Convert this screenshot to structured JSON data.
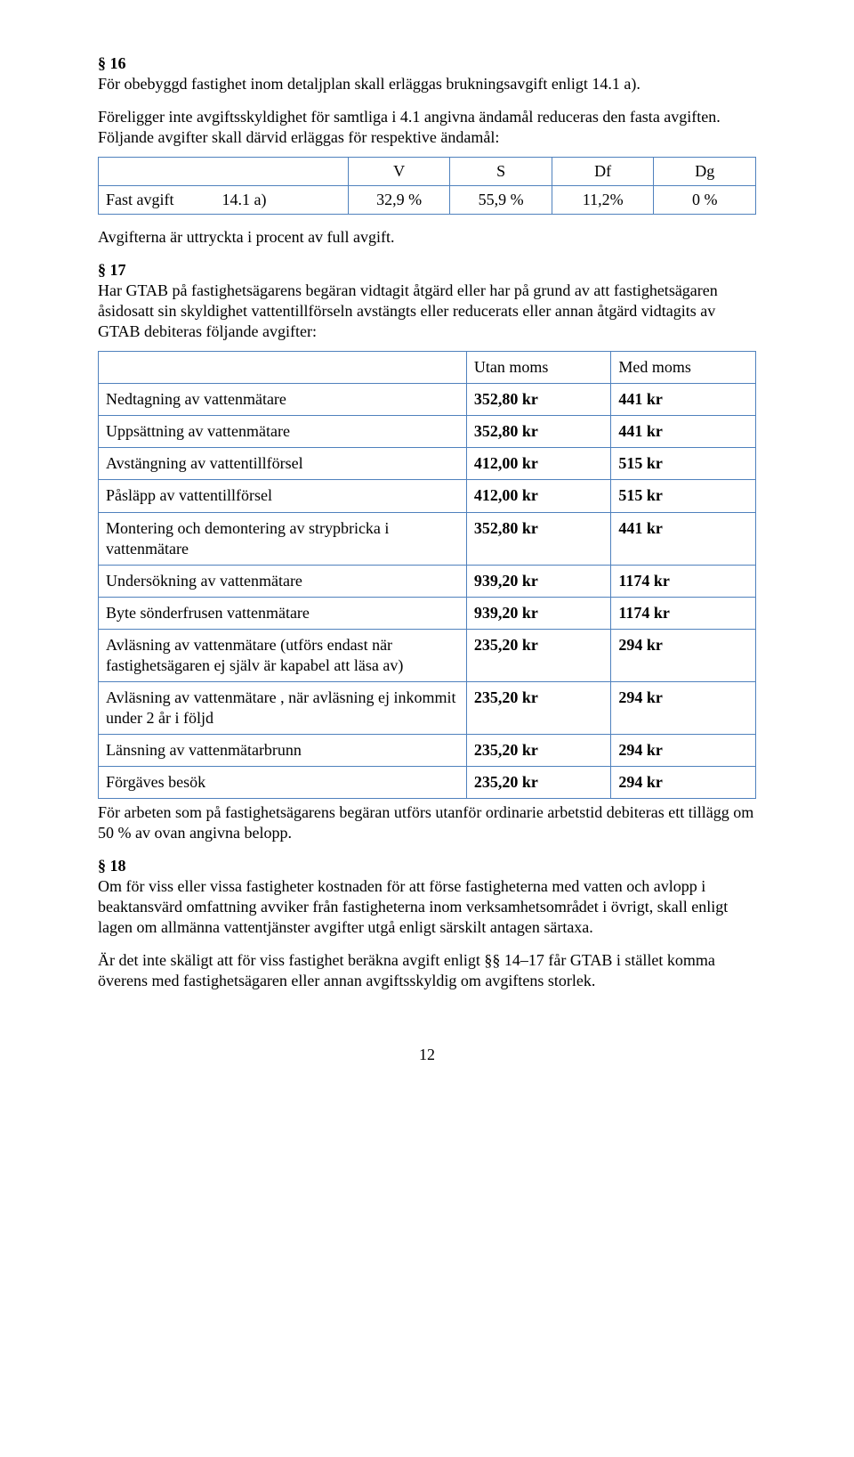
{
  "s16": {
    "head": "§ 16",
    "p1": "För obebyggd fastighet inom detaljplan skall erläggas brukningsavgift enligt 14.1 a).",
    "p2": "Föreligger inte avgiftsskyldighet för samtliga i 4.1 angivna ändamål reduceras den fasta avgiften. Följande avgifter skall därvid erläggas för respektive ändamål:",
    "table": {
      "headers": [
        "",
        "V",
        "S",
        "Df",
        "Dg"
      ],
      "row_label": "Fast avgift",
      "row_ref": "14.1 a)",
      "values": [
        "32,9 %",
        "55,9 %",
        "11,2%",
        "0 %"
      ]
    },
    "p3": "Avgifterna är uttryckta i procent av full avgift."
  },
  "s17": {
    "head": "§ 17",
    "p1": "Har GTAB på fastighetsägarens begäran vidtagit åtgärd eller har på grund av att fastighetsägaren åsidosatt sin skyldighet vattentillförseln avstängts eller reducerats eller annan åtgärd vidtagits av GTAB debiteras följande avgifter:",
    "table": {
      "col_utan": "Utan moms",
      "col_med": "Med moms",
      "rows": [
        {
          "label": "Nedtagning av vattenmätare",
          "utan": "352,80 kr",
          "med": "441 kr"
        },
        {
          "label": "Uppsättning av vattenmätare",
          "utan": "352,80 kr",
          "med": "441 kr"
        },
        {
          "label": "Avstängning av vattentillförsel",
          "utan": "412,00 kr",
          "med": "515 kr"
        },
        {
          "label": "Påsläpp av vattentillförsel",
          "utan": "412,00 kr",
          "med": "515 kr"
        },
        {
          "label": "Montering och demontering av strypbricka i vattenmätare",
          "utan": "352,80 kr",
          "med": "441 kr"
        },
        {
          "label": "Undersökning av vattenmätare",
          "utan": "939,20 kr",
          "med": "1174 kr"
        },
        {
          "label": "Byte sönderfrusen vattenmätare",
          "utan": "939,20 kr",
          "med": "1174 kr"
        },
        {
          "label": "Avläsning av vattenmätare (utförs endast när fastighetsägaren ej själv är kapabel att läsa av)",
          "utan": "235,20 kr",
          "med": "294 kr"
        },
        {
          "label": "Avläsning av vattenmätare , när avläsning ej inkommit under 2 år i följd",
          "utan": "235,20 kr",
          "med": "294 kr"
        },
        {
          "label": "Länsning av vattenmätarbrunn",
          "utan": "235,20 kr",
          "med": "294 kr"
        },
        {
          "label": "Förgäves besök",
          "utan": "235,20 kr",
          "med": "294 kr"
        }
      ]
    },
    "p2": "För arbeten som på fastighetsägarens begäran utförs utanför ordinarie arbetstid debiteras ett tillägg om 50 % av ovan angivna belopp."
  },
  "s18": {
    "head": "§ 18",
    "p1": "Om för viss eller vissa fastigheter kostnaden för att förse fastigheterna med vatten och avlopp i beaktansvärd omfattning avviker från fastigheterna inom verksamhetsområdet i övrigt, skall enligt lagen om allmänna vattentjänster avgifter utgå enligt särskilt antagen särtaxa.",
    "p2": "Är det inte skäligt att för viss fastighet beräkna avgift enligt §§ 14–17 får GTAB i stället komma överens med fastighetsägaren eller annan avgiftsskyldig om avgiftens storlek."
  },
  "page_number": "12",
  "table_border_color": "#4f81bd"
}
